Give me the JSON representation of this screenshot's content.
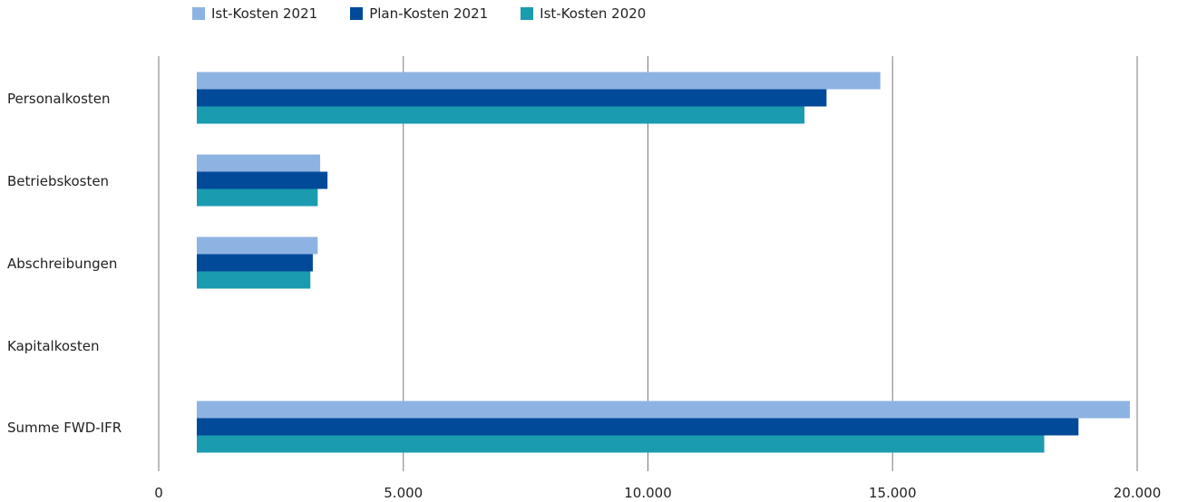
{
  "chart_data": {
    "type": "bar",
    "orientation": "horizontal",
    "categories": [
      "Personalkosten",
      "Betriebskosten",
      "Abschreibungen",
      "Kapitalkosten",
      "Summe FWD-IFR"
    ],
    "series": [
      {
        "name": "Ist-Kosten 2021",
        "color": "#8db3e2",
        "values": [
          14750,
          3300,
          3250,
          0,
          19850
        ]
      },
      {
        "name": "Plan-Kosten 2021",
        "color": "#004a99",
        "values": [
          13650,
          3450,
          3150,
          0,
          18800
        ]
      },
      {
        "name": "Ist-Kosten 2020",
        "color": "#1a9bb0",
        "values": [
          13200,
          3250,
          3100,
          0,
          18100
        ]
      }
    ],
    "xlim": [
      0,
      20000
    ],
    "xticks": [
      0,
      5000,
      10000,
      15000,
      20000
    ],
    "xtick_labels": [
      "0",
      "5.000",
      "10.000",
      "15.000",
      "20.000"
    ],
    "grid": true,
    "legend_position": "top-left"
  }
}
